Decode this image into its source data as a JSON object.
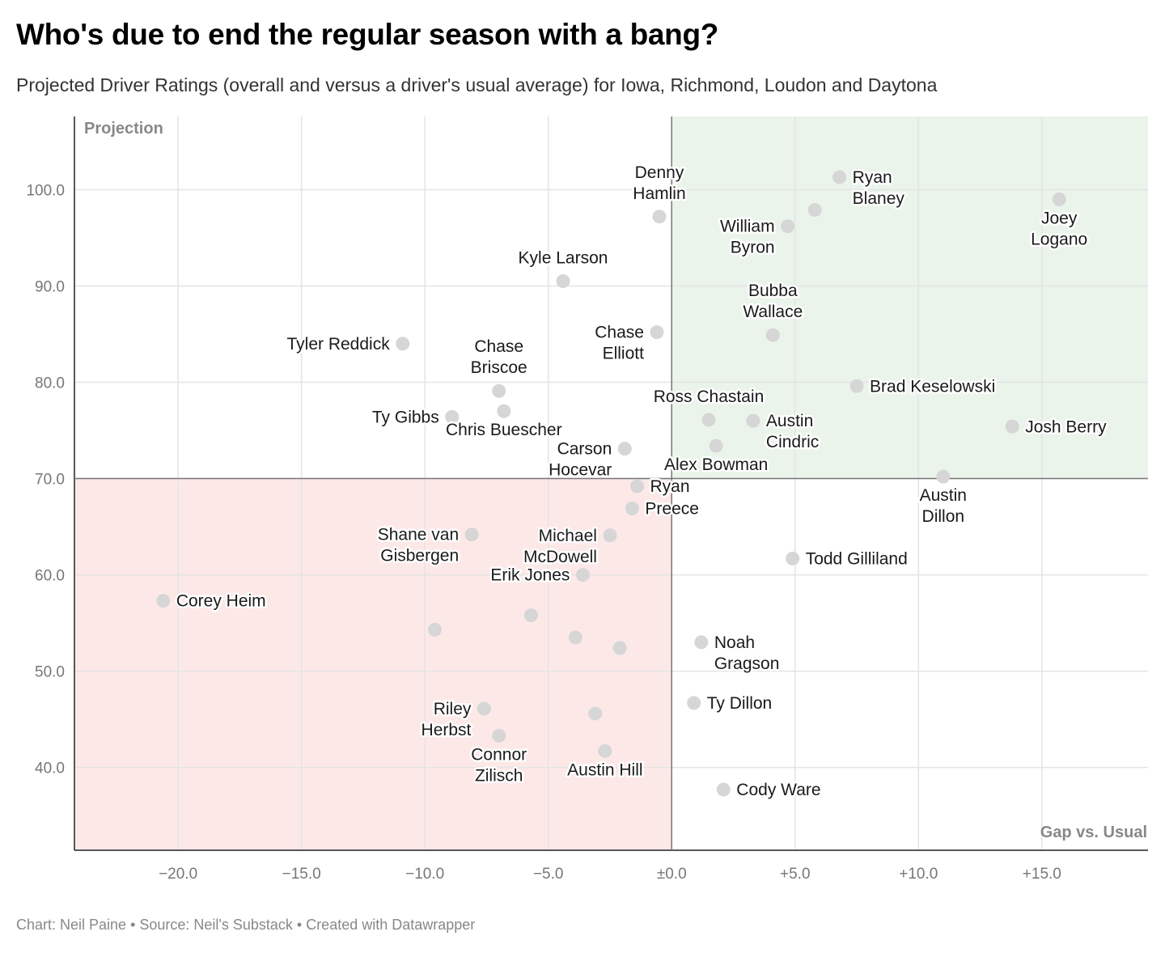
{
  "title": "Who's due to end the regular season with a bang?",
  "subtitle": "Projected Driver Ratings (overall and versus a driver's usual average) for Iowa, Richmond, Loudon and Daytona",
  "footer": "Chart: Neil Paine • Source: Neil's Substack • Created with Datawrapper",
  "colors": {
    "good_quadrant": "#ebf4ea",
    "bad_quadrant": "#fde8e8",
    "dot": "#d6d6d6",
    "grid": "#e4e4e4",
    "axis": "#555555"
  },
  "chart_data": {
    "type": "scatter",
    "xlabel": "Gap vs. Usual",
    "ylabel": "Projection",
    "xlim": [
      -24.2,
      19.3
    ],
    "ylim": [
      31.4,
      107.6
    ],
    "x_ticks": [
      -20,
      -15,
      -10,
      -5,
      0,
      5,
      10,
      15
    ],
    "x_tick_labels": [
      "−20.0",
      "−15.0",
      "−10.0",
      "−5.0",
      "±0.0",
      "+5.0",
      "+10.0",
      "+15.0"
    ],
    "y_ticks": [
      40,
      50,
      60,
      70,
      80,
      90,
      100
    ],
    "y_tick_labels": [
      "40.0",
      "50.0",
      "60.0",
      "70.0",
      "80.0",
      "90.0",
      "100.0"
    ],
    "reference_lines": {
      "x": 0,
      "y": 70
    },
    "grid": true,
    "points": [
      {
        "x": 15.7,
        "y": 99.0,
        "label": [
          "Joey",
          "Logano"
        ],
        "pos": "below"
      },
      {
        "x": 6.8,
        "y": 101.3,
        "label": [
          "Ryan",
          "Blaney"
        ],
        "pos": "right"
      },
      {
        "x": 5.8,
        "y": 97.9
      },
      {
        "x": 4.7,
        "y": 96.2,
        "label": [
          "William",
          "Byron"
        ],
        "pos": "left"
      },
      {
        "x": -0.5,
        "y": 97.2,
        "label": [
          "Denny",
          "Hamlin"
        ],
        "pos": "above"
      },
      {
        "x": -4.4,
        "y": 90.5,
        "label": [
          "Kyle Larson"
        ],
        "pos": "above"
      },
      {
        "x": 4.1,
        "y": 84.9,
        "label": [
          "Bubba",
          "Wallace"
        ],
        "pos": "above"
      },
      {
        "x": -0.6,
        "y": 85.2,
        "label": [
          "Chase",
          "Elliott"
        ],
        "pos": "left"
      },
      {
        "x": -10.9,
        "y": 84.0,
        "label": [
          "Tyler Reddick"
        ],
        "pos": "left"
      },
      {
        "x": -7.0,
        "y": 79.1,
        "label": [
          "Chase",
          "Briscoe"
        ],
        "pos": "above"
      },
      {
        "x": 7.5,
        "y": 79.6,
        "label": [
          "Brad Keselowski"
        ],
        "pos": "right"
      },
      {
        "x": -6.8,
        "y": 77.0,
        "label": [
          "Chris Buescher"
        ],
        "pos": "below"
      },
      {
        "x": -8.9,
        "y": 76.4,
        "label": [
          "Ty Gibbs"
        ],
        "pos": "left"
      },
      {
        "x": 1.5,
        "y": 76.1,
        "label": [
          "Ross Chastain"
        ],
        "pos": "above"
      },
      {
        "x": 3.3,
        "y": 76.0,
        "label": [
          "Austin",
          "Cindric"
        ],
        "pos": "right"
      },
      {
        "x": 13.8,
        "y": 75.4,
        "label": [
          "Josh Berry"
        ],
        "pos": "right"
      },
      {
        "x": 1.8,
        "y": 73.4,
        "label": [
          "Alex Bowman"
        ],
        "pos": "below"
      },
      {
        "x": -1.9,
        "y": 73.1,
        "label": [
          "Carson",
          "Hocevar"
        ],
        "pos": "left"
      },
      {
        "x": 11.0,
        "y": 70.2,
        "label": [
          "Austin",
          "Dillon"
        ],
        "pos": "below"
      },
      {
        "x": -1.4,
        "y": 69.2,
        "label": [
          "Ryan"
        ],
        "pos": "right"
      },
      {
        "x": -1.6,
        "y": 66.9,
        "label": [
          "Preece"
        ],
        "pos": "right"
      },
      {
        "x": -8.1,
        "y": 64.2,
        "label": [
          "Shane van",
          "Gisbergen"
        ],
        "pos": "left"
      },
      {
        "x": -2.5,
        "y": 64.1,
        "label": [
          "Michael",
          "McDowell"
        ],
        "pos": "left"
      },
      {
        "x": 4.9,
        "y": 61.7,
        "label": [
          "Todd Gilliland"
        ],
        "pos": "right"
      },
      {
        "x": -3.6,
        "y": 60.0,
        "label": [
          "Erik Jones"
        ],
        "pos": "left"
      },
      {
        "x": -20.6,
        "y": 57.3,
        "label": [
          "Corey Heim"
        ],
        "pos": "right"
      },
      {
        "x": -5.7,
        "y": 55.8
      },
      {
        "x": -9.6,
        "y": 54.3
      },
      {
        "x": -3.9,
        "y": 53.5
      },
      {
        "x": -2.1,
        "y": 52.4
      },
      {
        "x": 1.2,
        "y": 53.0,
        "label": [
          "Noah",
          "Gragson"
        ],
        "pos": "right"
      },
      {
        "x": 0.9,
        "y": 46.7,
        "label": [
          "Ty Dillon"
        ],
        "pos": "right"
      },
      {
        "x": -7.6,
        "y": 46.1,
        "label": [
          "Riley",
          "Herbst"
        ],
        "pos": "left"
      },
      {
        "x": -3.1,
        "y": 45.6
      },
      {
        "x": -7.0,
        "y": 43.3,
        "label": [
          "Connor",
          "Zilisch"
        ],
        "pos": "below"
      },
      {
        "x": -2.7,
        "y": 41.7,
        "label": [
          "Austin Hill"
        ],
        "pos": "below"
      },
      {
        "x": 2.1,
        "y": 37.7,
        "label": [
          "Cody Ware"
        ],
        "pos": "right"
      }
    ]
  }
}
